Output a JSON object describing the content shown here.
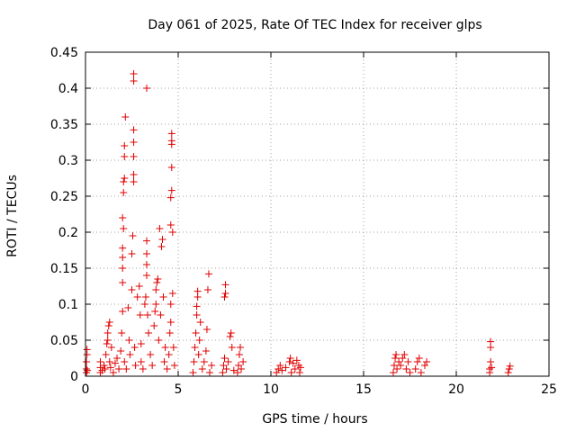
{
  "chart_data": {
    "type": "scatter",
    "title": "Day 061 of 2025, Rate Of TEC Index for receiver glps",
    "xlabel": "GPS time / hours",
    "ylabel": "ROTI / TECUs",
    "xlim": [
      0,
      25
    ],
    "ylim": [
      0,
      0.45
    ],
    "grid": true,
    "marker": "+",
    "marker_color": "#e00000",
    "x_ticks": [
      0,
      5,
      10,
      15,
      20,
      25
    ],
    "x_tick_labels": [
      "0",
      "5",
      "10",
      "15",
      "20",
      "25"
    ],
    "y_ticks": [
      0,
      0.05,
      0.1,
      0.15,
      0.2,
      0.25,
      0.3,
      0.35,
      0.4,
      0.45
    ],
    "y_tick_labels": [
      "0",
      "0.05",
      "0.1",
      "0.15",
      "0.2",
      "0.25",
      "0.3",
      "0.35",
      "0.4",
      "0.45"
    ],
    "series": [
      {
        "points": [
          [
            0.05,
            0.005
          ],
          [
            0.05,
            0.01
          ],
          [
            0.05,
            0.02
          ],
          [
            0.08,
            0.03
          ],
          [
            0.08,
            0.037
          ],
          [
            0.1,
            0.008
          ],
          [
            0.8,
            0.005
          ],
          [
            0.8,
            0.012
          ],
          [
            0.8,
            0.02
          ],
          [
            0.9,
            0.008
          ],
          [
            1.0,
            0.015
          ],
          [
            1.05,
            0.01
          ],
          [
            1.1,
            0.03
          ],
          [
            1.15,
            0.045
          ],
          [
            1.2,
            0.05
          ],
          [
            1.2,
            0.06
          ],
          [
            1.25,
            0.07
          ],
          [
            1.3,
            0.075
          ],
          [
            1.3,
            0.02
          ],
          [
            1.35,
            0.012
          ],
          [
            1.4,
            0.04
          ],
          [
            1.5,
            0.005
          ],
          [
            1.6,
            0.018
          ],
          [
            1.7,
            0.025
          ],
          [
            1.8,
            0.01
          ],
          [
            1.9,
            0.035
          ],
          [
            1.95,
            0.06
          ],
          [
            2.0,
            0.09
          ],
          [
            2.0,
            0.13
          ],
          [
            2.0,
            0.15
          ],
          [
            2.0,
            0.165
          ],
          [
            2.0,
            0.178
          ],
          [
            2.0,
            0.22
          ],
          [
            2.05,
            0.205
          ],
          [
            2.05,
            0.255
          ],
          [
            2.05,
            0.27
          ],
          [
            2.1,
            0.275
          ],
          [
            2.1,
            0.305
          ],
          [
            2.1,
            0.32
          ],
          [
            2.15,
            0.36
          ],
          [
            2.1,
            0.02
          ],
          [
            2.2,
            0.01
          ],
          [
            2.3,
            0.095
          ],
          [
            2.35,
            0.05
          ],
          [
            2.4,
            0.03
          ],
          [
            2.5,
            0.12
          ],
          [
            2.5,
            0.17
          ],
          [
            2.55,
            0.195
          ],
          [
            2.6,
            0.27
          ],
          [
            2.6,
            0.28
          ],
          [
            2.6,
            0.305
          ],
          [
            2.6,
            0.325
          ],
          [
            2.6,
            0.342
          ],
          [
            2.6,
            0.41
          ],
          [
            2.6,
            0.42
          ],
          [
            2.65,
            0.04
          ],
          [
            2.7,
            0.015
          ],
          [
            2.8,
            0.11
          ],
          [
            2.9,
            0.125
          ],
          [
            2.95,
            0.085
          ],
          [
            3.0,
            0.045
          ],
          [
            3.0,
            0.02
          ],
          [
            3.1,
            0.01
          ],
          [
            3.2,
            0.1
          ],
          [
            3.25,
            0.11
          ],
          [
            3.3,
            0.14
          ],
          [
            3.3,
            0.155
          ],
          [
            3.3,
            0.17
          ],
          [
            3.3,
            0.188
          ],
          [
            3.3,
            0.4
          ],
          [
            3.35,
            0.085
          ],
          [
            3.4,
            0.06
          ],
          [
            3.5,
            0.03
          ],
          [
            3.6,
            0.015
          ],
          [
            3.7,
            0.07
          ],
          [
            3.75,
            0.09
          ],
          [
            3.8,
            0.1
          ],
          [
            3.8,
            0.12
          ],
          [
            3.85,
            0.13
          ],
          [
            3.9,
            0.135
          ],
          [
            3.95,
            0.05
          ],
          [
            4.0,
            0.205
          ],
          [
            4.05,
            0.085
          ],
          [
            4.1,
            0.18
          ],
          [
            4.15,
            0.19
          ],
          [
            4.2,
            0.11
          ],
          [
            4.25,
            0.02
          ],
          [
            4.3,
            0.04
          ],
          [
            4.4,
            0.01
          ],
          [
            4.5,
            0.03
          ],
          [
            4.55,
            0.06
          ],
          [
            4.6,
            0.075
          ],
          [
            4.6,
            0.1
          ],
          [
            4.6,
            0.21
          ],
          [
            4.6,
            0.248
          ],
          [
            4.65,
            0.258
          ],
          [
            4.65,
            0.29
          ],
          [
            4.65,
            0.322
          ],
          [
            4.65,
            0.327
          ],
          [
            4.65,
            0.337
          ],
          [
            4.7,
            0.2
          ],
          [
            4.7,
            0.115
          ],
          [
            4.75,
            0.04
          ],
          [
            4.8,
            0.015
          ],
          [
            5.8,
            0.005
          ],
          [
            5.85,
            0.02
          ],
          [
            5.9,
            0.04
          ],
          [
            5.95,
            0.06
          ],
          [
            6.0,
            0.085
          ],
          [
            6.0,
            0.097
          ],
          [
            6.05,
            0.11
          ],
          [
            6.05,
            0.118
          ],
          [
            6.1,
            0.03
          ],
          [
            6.15,
            0.05
          ],
          [
            6.2,
            0.075
          ],
          [
            6.3,
            0.01
          ],
          [
            6.4,
            0.02
          ],
          [
            6.5,
            0.035
          ],
          [
            6.55,
            0.065
          ],
          [
            6.6,
            0.12
          ],
          [
            6.65,
            0.142
          ],
          [
            6.7,
            0.005
          ],
          [
            6.8,
            0.015
          ],
          [
            7.4,
            0.005
          ],
          [
            7.45,
            0.015
          ],
          [
            7.5,
            0.025
          ],
          [
            7.5,
            0.11
          ],
          [
            7.55,
            0.115
          ],
          [
            7.55,
            0.127
          ],
          [
            7.6,
            0.01
          ],
          [
            7.7,
            0.02
          ],
          [
            7.8,
            0.055
          ],
          [
            7.85,
            0.06
          ],
          [
            7.9,
            0.04
          ],
          [
            8.0,
            0.008
          ],
          [
            8.2,
            0.005
          ],
          [
            8.25,
            0.015
          ],
          [
            8.3,
            0.03
          ],
          [
            8.35,
            0.04
          ],
          [
            8.4,
            0.01
          ],
          [
            8.5,
            0.02
          ],
          [
            10.3,
            0.005
          ],
          [
            10.4,
            0.01
          ],
          [
            10.5,
            0.015
          ],
          [
            10.6,
            0.008
          ],
          [
            10.8,
            0.012
          ],
          [
            11.0,
            0.02
          ],
          [
            11.05,
            0.025
          ],
          [
            11.1,
            0.005
          ],
          [
            11.2,
            0.018
          ],
          [
            11.3,
            0.01
          ],
          [
            11.4,
            0.022
          ],
          [
            11.5,
            0.015
          ],
          [
            11.55,
            0.005
          ],
          [
            11.6,
            0.012
          ],
          [
            16.6,
            0.005
          ],
          [
            16.65,
            0.015
          ],
          [
            16.7,
            0.025
          ],
          [
            16.75,
            0.03
          ],
          [
            16.8,
            0.01
          ],
          [
            16.9,
            0.02
          ],
          [
            17.0,
            0.015
          ],
          [
            17.1,
            0.025
          ],
          [
            17.2,
            0.03
          ],
          [
            17.3,
            0.01
          ],
          [
            17.4,
            0.02
          ],
          [
            17.5,
            0.005
          ],
          [
            17.8,
            0.01
          ],
          [
            17.9,
            0.02
          ],
          [
            18.0,
            0.025
          ],
          [
            18.1,
            0.005
          ],
          [
            18.3,
            0.015
          ],
          [
            18.4,
            0.02
          ],
          [
            21.8,
            0.005
          ],
          [
            21.8,
            0.01
          ],
          [
            21.85,
            0.02
          ],
          [
            21.85,
            0.04
          ],
          [
            21.85,
            0.048
          ],
          [
            21.9,
            0.012
          ],
          [
            22.8,
            0.005
          ],
          [
            22.85,
            0.01
          ],
          [
            22.9,
            0.014
          ]
        ]
      }
    ]
  }
}
